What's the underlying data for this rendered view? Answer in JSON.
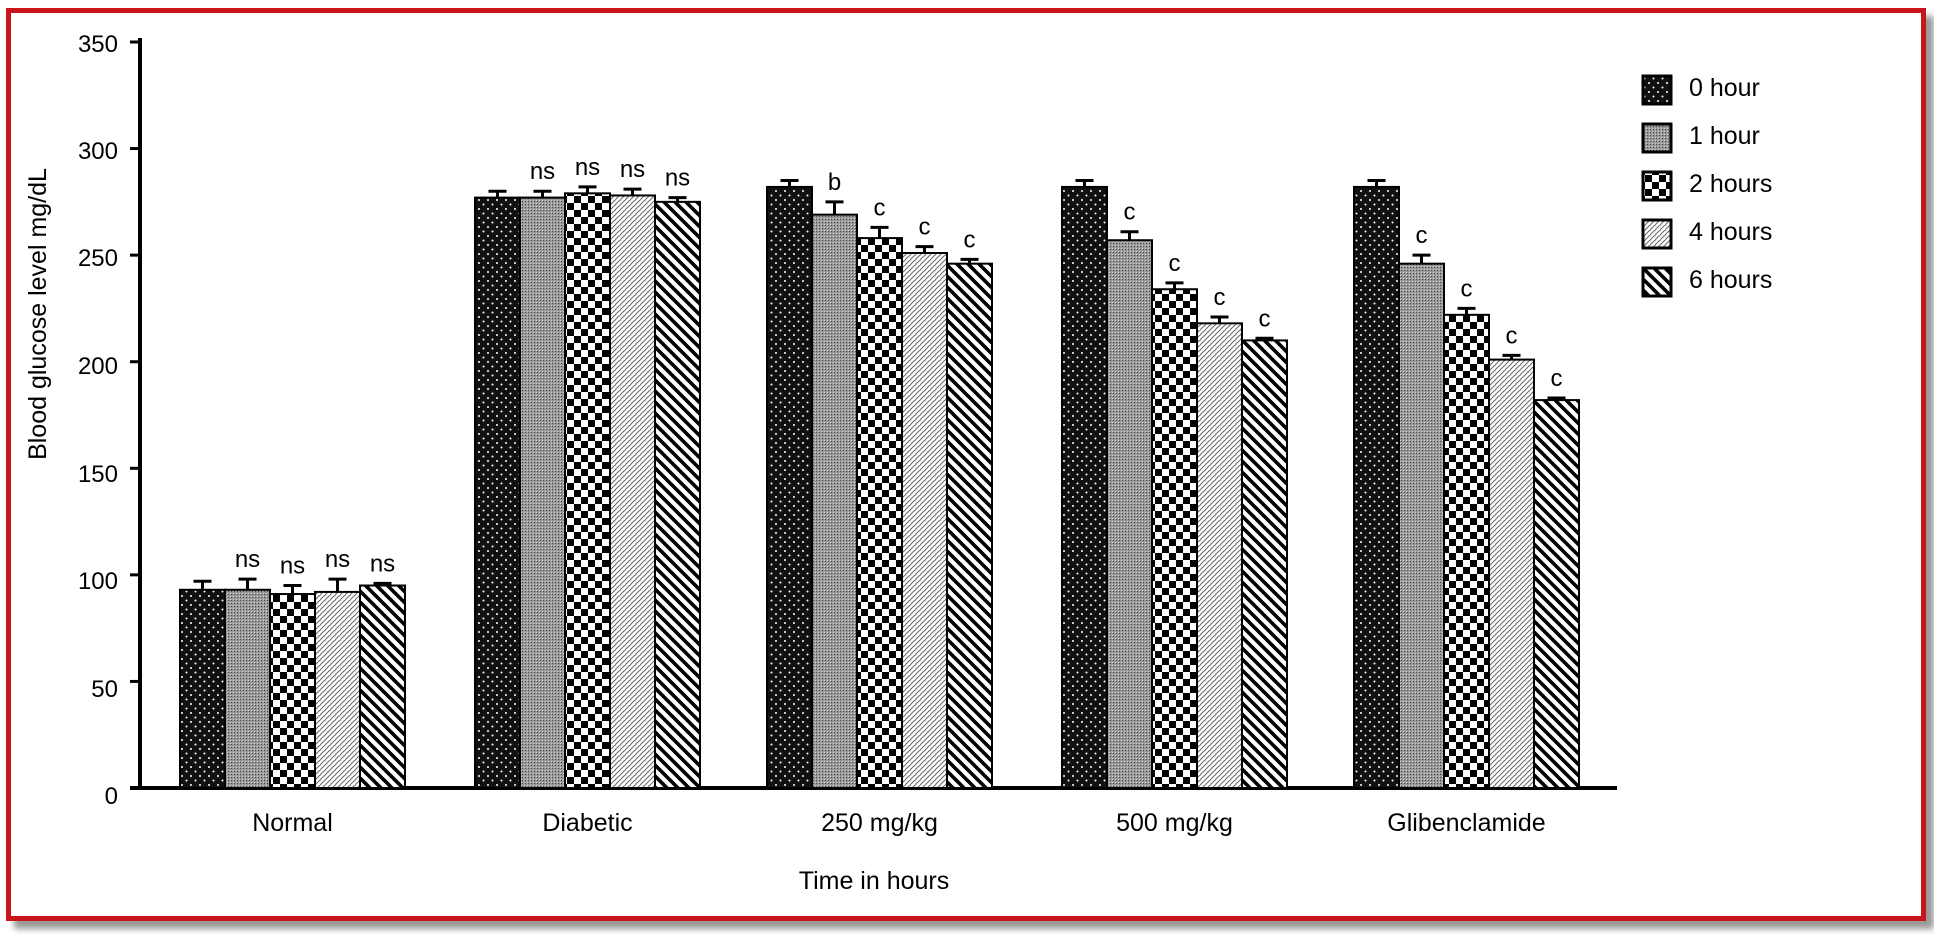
{
  "chart_data": {
    "type": "bar",
    "title": "",
    "xlabel": "Time in hours",
    "ylabel": "Blood glucose level  mg/dL",
    "ylim": [
      0,
      350
    ],
    "yticks": [
      0,
      50,
      100,
      150,
      200,
      250,
      300,
      350
    ],
    "grid": false,
    "legend_position": "top-right",
    "categories": [
      "Normal",
      "Diabetic",
      "250 mg/kg",
      "500 mg/kg",
      "Glibenclamide"
    ],
    "series": [
      {
        "name": "0 hour",
        "pattern": "dots",
        "values": [
          93,
          277,
          282,
          282,
          282
        ],
        "errors": [
          4,
          3,
          3,
          3,
          3
        ],
        "annotations": [
          "",
          "",
          "",
          "",
          ""
        ]
      },
      {
        "name": "1 hour",
        "pattern": "fine",
        "values": [
          93,
          277,
          269,
          257,
          246
        ],
        "errors": [
          5,
          3,
          6,
          4,
          4
        ],
        "annotations": [
          "ns",
          "ns",
          "b",
          "c",
          "c"
        ]
      },
      {
        "name": "2 hours",
        "pattern": "checker",
        "values": [
          91,
          279,
          258,
          234,
          222
        ],
        "errors": [
          4,
          3,
          5,
          3,
          3
        ],
        "annotations": [
          "ns",
          "ns",
          "c",
          "c",
          "c"
        ]
      },
      {
        "name": "4 hours",
        "pattern": "hatch",
        "values": [
          92,
          278,
          251,
          218,
          201
        ],
        "errors": [
          6,
          3,
          3,
          3,
          2
        ],
        "annotations": [
          "ns",
          "ns",
          "c",
          "c",
          "c"
        ]
      },
      {
        "name": "6 hours",
        "pattern": "diag",
        "values": [
          95,
          275,
          246,
          210,
          182
        ],
        "errors": [
          1,
          2,
          2,
          1,
          1
        ],
        "annotations": [
          "ns",
          "ns",
          "c",
          "c",
          "c"
        ]
      }
    ]
  }
}
